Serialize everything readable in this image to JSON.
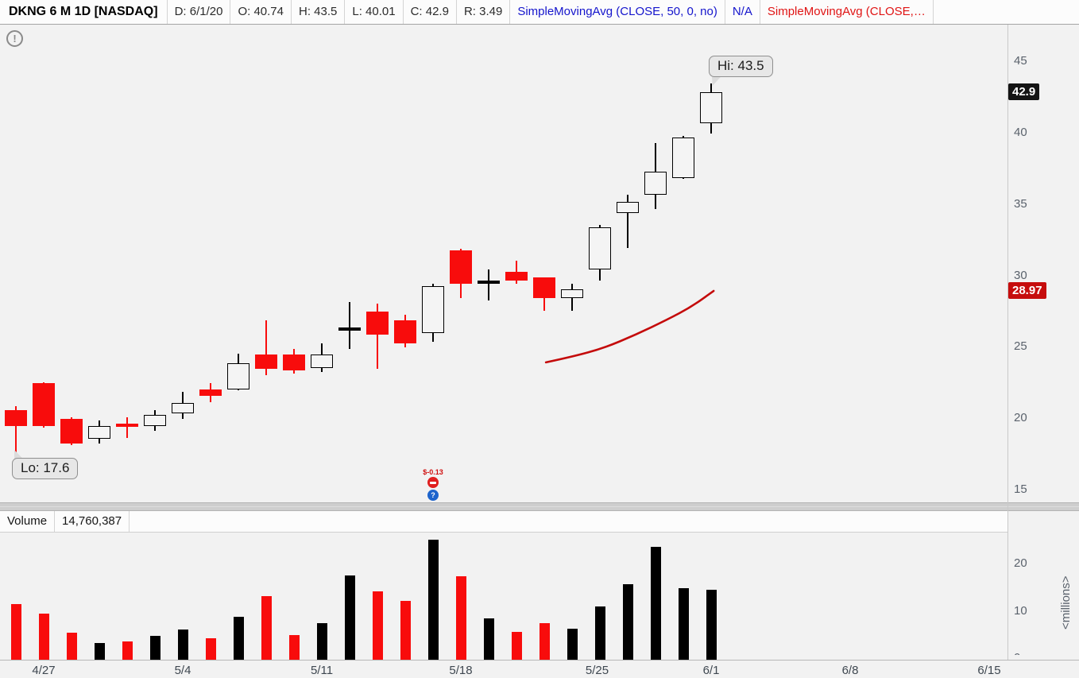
{
  "header": {
    "title": "DKNG 6 M 1D [NASDAQ]",
    "cells": [
      "D: 6/1/20",
      "O: 40.74",
      "H: 43.5",
      "L: 40.01",
      "C: 42.9",
      "R: 3.49"
    ],
    "study_sma_blue": "SimpleMovingAvg (CLOSE, 50, 0, no)",
    "study_sma_blue_value": "N/A",
    "study_sma_red": "SimpleMovingAvg (CLOSE,…"
  },
  "annotations": {
    "hi_label": "Hi: 43.5",
    "lo_label": "Lo: 17.6",
    "event_text": "$-0.13",
    "event_blue_glyph": "?"
  },
  "price_axis": {
    "ticks": [
      45,
      40,
      35,
      30,
      25,
      20,
      15
    ],
    "badges": [
      {
        "text": "42.9",
        "price": 42.9,
        "bg": "#141414"
      },
      {
        "text": "28.97",
        "price": 28.97,
        "bg": "#c60d0d"
      }
    ]
  },
  "volume_pane": {
    "label": "Volume",
    "value": "14,760,387",
    "ticks": [
      20,
      10,
      0
    ],
    "unit_label": "<millions>"
  },
  "x_axis": {
    "labels": [
      {
        "text": "4/27",
        "i": 1
      },
      {
        "text": "5/4",
        "i": 6
      },
      {
        "text": "5/11",
        "i": 11
      },
      {
        "text": "5/18",
        "i": 16
      },
      {
        "text": "5/25",
        "i": 20.9
      },
      {
        "text": "6/1",
        "i": 25
      },
      {
        "text": "6/8",
        "i": 30
      },
      {
        "text": "6/15",
        "i": 35
      }
    ]
  },
  "chart_data": {
    "type": "candlestick",
    "symbol": "DKNG",
    "timeframe": "6 M 1D",
    "price_axis_range": [
      15,
      45
    ],
    "volume_axis_range_millions": [
      0,
      25.5
    ],
    "legend": [
      "SimpleMovingAvg blue (N/A)",
      "SimpleMovingAvg red (28.97)"
    ],
    "candles": [
      {
        "date": "4/24",
        "o": 20.6,
        "h": 20.9,
        "l": 17.6,
        "c": 19.5,
        "up": false,
        "cross": false,
        "v": 11.7
      },
      {
        "date": "4/27",
        "o": 22.5,
        "h": 22.6,
        "l": 19.4,
        "c": 19.5,
        "up": false,
        "cross": false,
        "v": 9.8
      },
      {
        "date": "4/28",
        "o": 20.0,
        "h": 20.1,
        "l": 18.2,
        "c": 18.3,
        "up": false,
        "cross": false,
        "v": 5.7
      },
      {
        "date": "4/29",
        "o": 18.6,
        "h": 19.9,
        "l": 18.3,
        "c": 19.5,
        "up": true,
        "cross": false,
        "v": 3.5
      },
      {
        "date": "4/30",
        "o": 19.6,
        "h": 20.1,
        "l": 18.7,
        "c": 19.55,
        "up": false,
        "cross": true,
        "v": 3.9
      },
      {
        "date": "5/1",
        "o": 19.5,
        "h": 20.6,
        "l": 19.2,
        "c": 20.3,
        "up": true,
        "cross": false,
        "v": 5.1
      },
      {
        "date": "5/4",
        "o": 20.4,
        "h": 21.9,
        "l": 20.0,
        "c": 21.1,
        "up": true,
        "cross": false,
        "v": 6.4
      },
      {
        "date": "5/5",
        "o": 22.1,
        "h": 22.5,
        "l": 21.2,
        "c": 21.6,
        "up": false,
        "cross": false,
        "v": 4.6
      },
      {
        "date": "5/6",
        "o": 22.1,
        "h": 24.6,
        "l": 22.0,
        "c": 23.9,
        "up": true,
        "cross": false,
        "v": 9.0
      },
      {
        "date": "5/7",
        "o": 24.5,
        "h": 26.9,
        "l": 23.1,
        "c": 23.5,
        "up": false,
        "cross": false,
        "v": 13.5
      },
      {
        "date": "5/8",
        "o": 24.5,
        "h": 24.9,
        "l": 23.2,
        "c": 23.4,
        "up": false,
        "cross": false,
        "v": 5.2
      },
      {
        "date": "5/11",
        "o": 23.6,
        "h": 25.3,
        "l": 23.3,
        "c": 24.5,
        "up": true,
        "cross": false,
        "v": 7.7
      },
      {
        "date": "5/12",
        "o": 26.4,
        "h": 28.2,
        "l": 24.9,
        "c": 26.3,
        "up": true,
        "cross": true,
        "v": 17.8
      },
      {
        "date": "5/13",
        "o": 27.5,
        "h": 28.1,
        "l": 23.5,
        "c": 25.9,
        "up": false,
        "cross": false,
        "v": 14.5
      },
      {
        "date": "5/14",
        "o": 26.9,
        "h": 27.3,
        "l": 25.0,
        "c": 25.3,
        "up": false,
        "cross": false,
        "v": 12.4
      },
      {
        "date": "5/15",
        "o": 26.0,
        "h": 29.5,
        "l": 25.4,
        "c": 29.3,
        "up": true,
        "cross": false,
        "v": 25.4
      },
      {
        "date": "5/18",
        "o": 31.8,
        "h": 31.9,
        "l": 28.5,
        "c": 29.5,
        "up": false,
        "cross": false,
        "v": 17.7
      },
      {
        "date": "5/19",
        "o": 29.65,
        "h": 30.5,
        "l": 28.3,
        "c": 29.6,
        "up": true,
        "cross": true,
        "v": 8.8
      },
      {
        "date": "5/20",
        "o": 30.3,
        "h": 31.1,
        "l": 29.5,
        "c": 29.7,
        "up": false,
        "cross": false,
        "v": 5.9
      },
      {
        "date": "5/21",
        "o": 29.9,
        "h": 29.9,
        "l": 27.6,
        "c": 28.5,
        "up": false,
        "cross": false,
        "v": 7.8
      },
      {
        "date": "5/22",
        "o": 28.5,
        "h": 29.5,
        "l": 27.6,
        "c": 29.1,
        "up": true,
        "cross": false,
        "v": 6.5
      },
      {
        "date": "5/26",
        "o": 30.5,
        "h": 33.6,
        "l": 29.7,
        "c": 33.4,
        "up": true,
        "cross": false,
        "v": 11.3
      },
      {
        "date": "5/27",
        "o": 34.4,
        "h": 35.7,
        "l": 32.0,
        "c": 35.2,
        "up": true,
        "cross": false,
        "v": 16.0
      },
      {
        "date": "5/28",
        "o": 35.7,
        "h": 39.3,
        "l": 34.7,
        "c": 37.3,
        "up": true,
        "cross": false,
        "v": 23.9
      },
      {
        "date": "5/29",
        "o": 36.9,
        "h": 39.8,
        "l": 36.8,
        "c": 39.7,
        "up": true,
        "cross": false,
        "v": 15.2
      },
      {
        "date": "6/1",
        "o": 40.74,
        "h": 43.5,
        "l": 40.01,
        "c": 42.9,
        "up": true,
        "cross": false,
        "v": 14.76
      }
    ],
    "sma50_red_points": [
      [
        19.06,
        23.97
      ],
      [
        20.0,
        24.36
      ],
      [
        21.14,
        24.97
      ],
      [
        22.29,
        25.91
      ],
      [
        23.43,
        26.97
      ],
      [
        24.29,
        27.86
      ],
      [
        25.09,
        28.97
      ]
    ]
  },
  "colors": {
    "candle_down": "#f80c0c",
    "candle_up_border": "#000000",
    "volume_up": "#000000",
    "volume_down": "#f80c0c",
    "sma_red_line": "#c40b0b",
    "study_blue_text": "#1414cc",
    "study_red_text": "#e01414",
    "event_red": "#e01f1f",
    "event_blue": "#1d64cc",
    "background": "#f2f2f2"
  },
  "icons": {
    "header_right": "line-style-curve-icon",
    "top_left": "info-circle-icon",
    "event_markers": [
      "earnings-marker-icon",
      "dividend-question-marker-icon"
    ]
  }
}
